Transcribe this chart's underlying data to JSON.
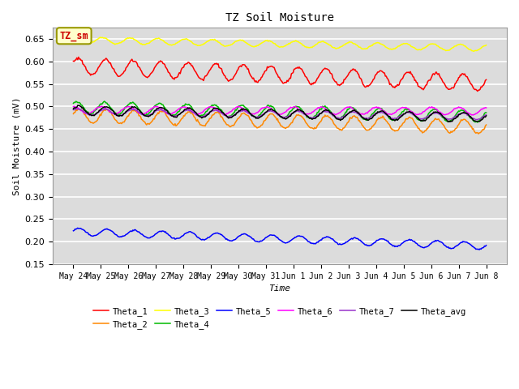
{
  "title": "TZ Soil Moisture",
  "xlabel": "Time",
  "ylabel": "Soil Moisture (mV)",
  "ylim": [
    0.15,
    0.675
  ],
  "yticks": [
    0.15,
    0.2,
    0.25,
    0.3,
    0.35,
    0.4,
    0.45,
    0.5,
    0.55,
    0.6,
    0.65
  ],
  "xtick_labels": [
    "May 24",
    "May 25",
    "May 26",
    "May 27",
    "May 28",
    "May 29",
    "May 30",
    "May 31",
    "Jun 1",
    "Jun 2",
    "Jun 3",
    "Jun 4",
    "Jun 5",
    "Jun 6",
    "Jun 7",
    "Jun 8"
  ],
  "n_points": 480,
  "series_order": [
    "Theta_1",
    "Theta_2",
    "Theta_3",
    "Theta_4",
    "Theta_5",
    "Theta_6",
    "Theta_7",
    "Theta_avg"
  ],
  "series": {
    "Theta_1": {
      "color": "#ff0000",
      "base": 0.59,
      "trend": -0.038,
      "amp": 0.018,
      "phase": 0.5
    },
    "Theta_2": {
      "color": "#ff8800",
      "base": 0.48,
      "trend": -0.025,
      "amp": 0.015,
      "phase": 0.3
    },
    "Theta_3": {
      "color": "#ffff00",
      "base": 0.648,
      "trend": -0.018,
      "amp": 0.007,
      "phase": 1.2
    },
    "Theta_4": {
      "color": "#00bb00",
      "base": 0.498,
      "trend": -0.02,
      "amp": 0.013,
      "phase": 0.8
    },
    "Theta_5": {
      "color": "#0000ff",
      "base": 0.222,
      "trend": -0.032,
      "amp": 0.008,
      "phase": 0.2
    },
    "Theta_6": {
      "color": "#ff00ff",
      "base": 0.492,
      "trend": -0.002,
      "amp": 0.008,
      "phase": 1.5
    },
    "Theta_7": {
      "color": "#9933cc",
      "base": 0.488,
      "trend": -0.01,
      "amp": 0.007,
      "phase": 0.6
    },
    "Theta_avg": {
      "color": "#000000",
      "base": 0.491,
      "trend": -0.015,
      "amp": 0.01,
      "phase": 0.4
    }
  },
  "annotation_text": "TZ_sm",
  "annotation_color": "#cc0000",
  "annotation_bg": "#ffffcc",
  "annotation_edge": "#999900",
  "plot_bg": "#dcdcdc",
  "grid_color": "#ffffff",
  "linewidth": 1.1,
  "figsize": [
    6.4,
    4.8
  ],
  "dpi": 100
}
